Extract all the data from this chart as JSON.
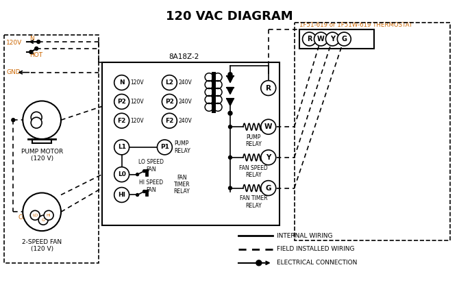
{
  "title": "120 VAC DIAGRAM",
  "title_color": "#000000",
  "title_fontsize": 13,
  "background_color": "#ffffff",
  "orange": "#cc6600",
  "black": "#000000",
  "thermostat_label": "1F51-619 or 1F51W-619 THERMOSTAT",
  "controller_label": "8A18Z-2",
  "thermostat_terminals": [
    "R",
    "W",
    "Y",
    "G"
  ],
  "legend_items": [
    {
      "label": "INTERNAL WIRING",
      "style": "solid"
    },
    {
      "label": "FIELD INSTALLED WIRING",
      "style": "dashed"
    },
    {
      "label": "ELECTRICAL CONNECTION",
      "style": "dot_arrow"
    }
  ]
}
